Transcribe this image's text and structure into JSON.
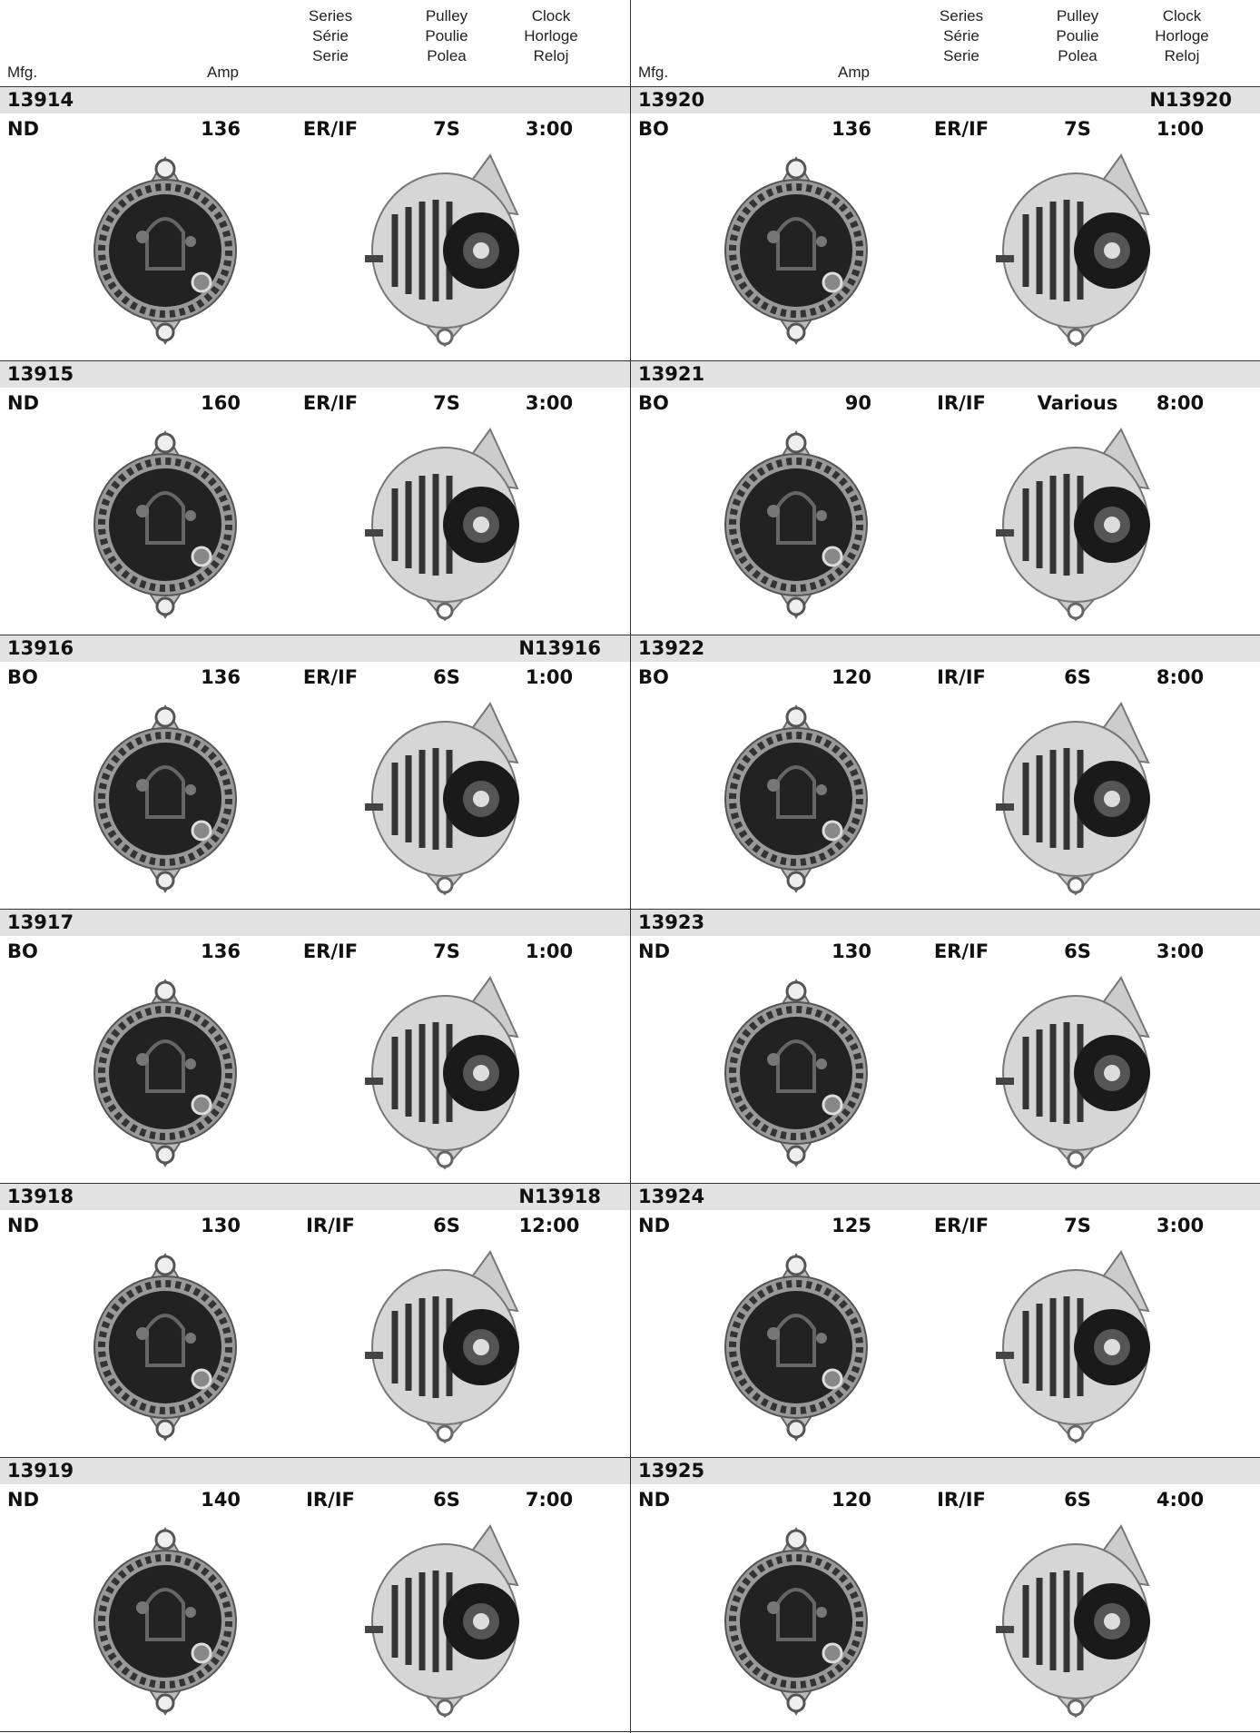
{
  "header": {
    "mfg": "Mfg.",
    "amp": "Amp",
    "series": [
      "Series",
      "Série",
      "Serie"
    ],
    "pulley": [
      "Pulley",
      "Poulie",
      "Polea"
    ],
    "clock": [
      "Clock",
      "Horloge",
      "Reloj"
    ]
  },
  "columns": [
    {
      "entries": [
        {
          "part": "13914",
          "mfg": "ND",
          "amp": "136",
          "series": "ER/IF",
          "pulley": "7S",
          "clock": "3:00"
        },
        {
          "part": "13915",
          "mfg": "ND",
          "amp": "160",
          "series": "ER/IF",
          "pulley": "7S",
          "clock": "3:00"
        },
        {
          "part": "13916",
          "alt": "N13916",
          "mfg": "BO",
          "amp": "136",
          "series": "ER/IF",
          "pulley": "6S",
          "clock": "1:00"
        },
        {
          "part": "13917",
          "mfg": "BO",
          "amp": "136",
          "series": "ER/IF",
          "pulley": "7S",
          "clock": "1:00"
        },
        {
          "part": "13918",
          "alt": "N13918",
          "mfg": "ND",
          "amp": "130",
          "series": "IR/IF",
          "pulley": "6S",
          "clock": "12:00"
        },
        {
          "part": "13919",
          "mfg": "ND",
          "amp": "140",
          "series": "IR/IF",
          "pulley": "6S",
          "clock": "7:00"
        }
      ]
    },
    {
      "entries": [
        {
          "part": "13920",
          "alt": "N13920",
          "mfg": "BO",
          "amp": "136",
          "series": "ER/IF",
          "pulley": "7S",
          "clock": "1:00"
        },
        {
          "part": "13921",
          "mfg": "BO",
          "amp": "90",
          "series": "IR/IF",
          "pulley": "Various",
          "clock": "8:00"
        },
        {
          "part": "13922",
          "mfg": "BO",
          "amp": "120",
          "series": "IR/IF",
          "pulley": "6S",
          "clock": "8:00"
        },
        {
          "part": "13923",
          "mfg": "ND",
          "amp": "130",
          "series": "ER/IF",
          "pulley": "6S",
          "clock": "3:00"
        },
        {
          "part": "13924",
          "mfg": "ND",
          "amp": "125",
          "series": "ER/IF",
          "pulley": "7S",
          "clock": "3:00"
        },
        {
          "part": "13925",
          "mfg": "ND",
          "amp": "120",
          "series": "IR/IF",
          "pulley": "6S",
          "clock": "4:00"
        }
      ]
    }
  ]
}
